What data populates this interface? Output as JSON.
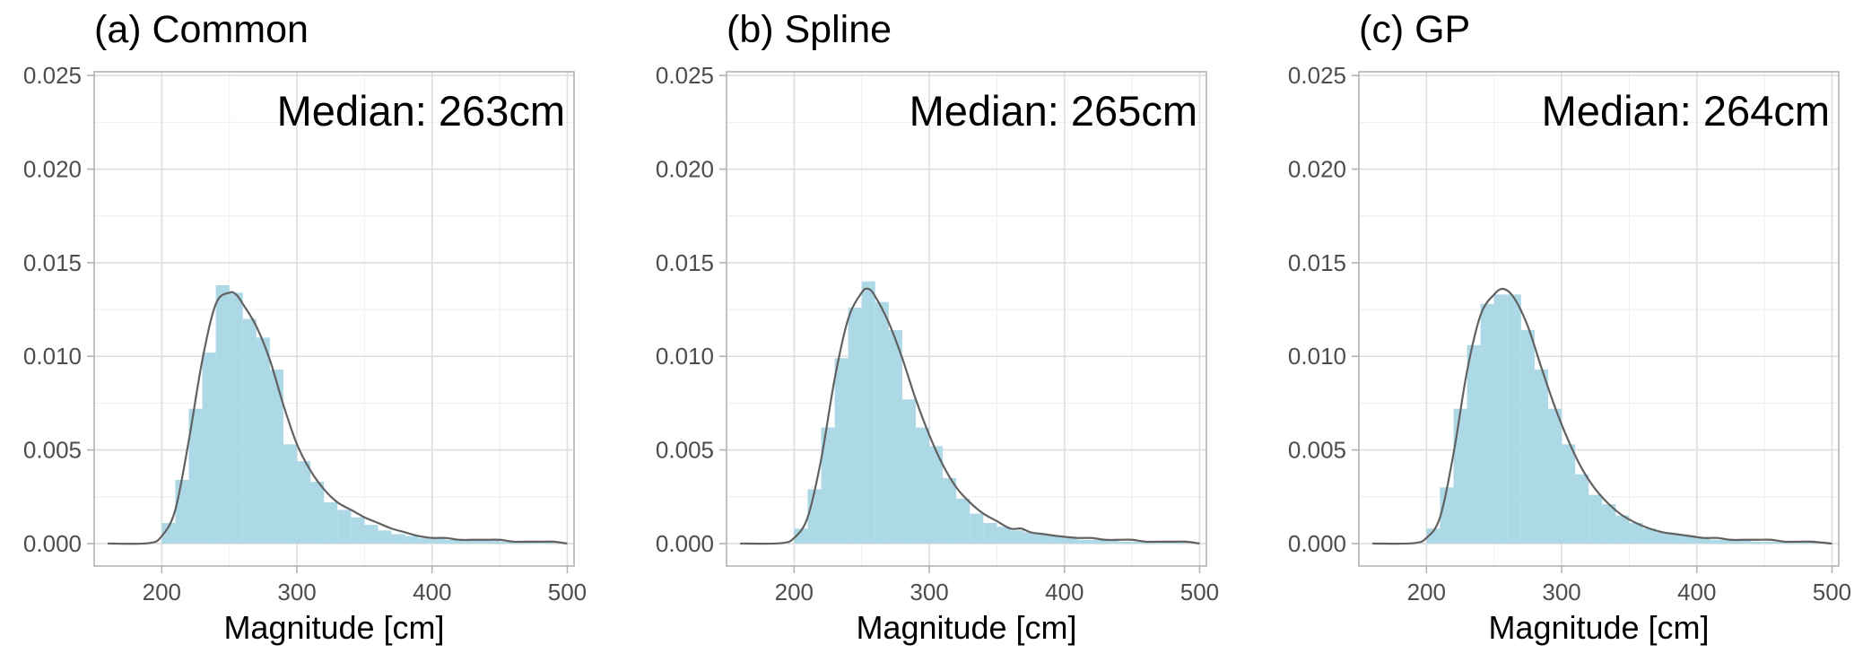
{
  "chart_data": [
    {
      "type": "histogram",
      "title": "(a) Common",
      "annotation": "Median: 263cm",
      "xlabel": "Magnitude [cm]",
      "ylabel": "",
      "xlim": [
        150,
        505
      ],
      "ylim": [
        -0.0012,
        0.0252
      ],
      "x_ticks": [
        200,
        300,
        400,
        500
      ],
      "y_ticks": [
        0.0,
        0.005,
        0.01,
        0.015,
        0.02,
        0.025
      ],
      "x_tick_labels": [
        "200",
        "300",
        "400",
        "500"
      ],
      "y_tick_labels": [
        "0.000",
        "0.005",
        "0.010",
        "0.015",
        "0.020",
        "0.025"
      ],
      "grid": true,
      "bin_width": 10,
      "bins": [
        {
          "x": 205,
          "y": 0.0011
        },
        {
          "x": 215,
          "y": 0.0034
        },
        {
          "x": 225,
          "y": 0.0072
        },
        {
          "x": 235,
          "y": 0.0102
        },
        {
          "x": 245,
          "y": 0.0138
        },
        {
          "x": 255,
          "y": 0.0134
        },
        {
          "x": 265,
          "y": 0.012
        },
        {
          "x": 275,
          "y": 0.011
        },
        {
          "x": 285,
          "y": 0.0093
        },
        {
          "x": 295,
          "y": 0.0053
        },
        {
          "x": 305,
          "y": 0.0044
        },
        {
          "x": 315,
          "y": 0.0033
        },
        {
          "x": 325,
          "y": 0.0022
        },
        {
          "x": 335,
          "y": 0.0018
        },
        {
          "x": 345,
          "y": 0.0014
        },
        {
          "x": 355,
          "y": 0.001
        },
        {
          "x": 365,
          "y": 0.0007
        },
        {
          "x": 375,
          "y": 0.0005
        },
        {
          "x": 385,
          "y": 0.0004
        },
        {
          "x": 395,
          "y": 0.0003
        },
        {
          "x": 405,
          "y": 0.0003
        },
        {
          "x": 415,
          "y": 0.0002
        },
        {
          "x": 425,
          "y": 0.0002
        },
        {
          "x": 435,
          "y": 0.0002
        },
        {
          "x": 445,
          "y": 0.0002
        },
        {
          "x": 455,
          "y": 0.0001
        },
        {
          "x": 465,
          "y": 0.0001
        },
        {
          "x": 475,
          "y": 0.0001
        },
        {
          "x": 485,
          "y": 0.0001
        }
      ],
      "density": [
        [
          160,
          0.0
        ],
        [
          190,
          2e-05
        ],
        [
          200,
          0.0004
        ],
        [
          210,
          0.0018
        ],
        [
          220,
          0.0055
        ],
        [
          230,
          0.0098
        ],
        [
          240,
          0.0128
        ],
        [
          250,
          0.0134
        ],
        [
          255,
          0.0133
        ],
        [
          260,
          0.0128
        ],
        [
          270,
          0.0116
        ],
        [
          280,
          0.0098
        ],
        [
          290,
          0.0074
        ],
        [
          300,
          0.0053
        ],
        [
          310,
          0.0039
        ],
        [
          320,
          0.0029
        ],
        [
          330,
          0.0022
        ],
        [
          340,
          0.0018
        ],
        [
          350,
          0.0014
        ],
        [
          360,
          0.0011
        ],
        [
          370,
          0.0008
        ],
        [
          380,
          0.0006
        ],
        [
          390,
          0.0004
        ],
        [
          400,
          0.0003
        ],
        [
          410,
          0.0003
        ],
        [
          420,
          0.0002
        ],
        [
          430,
          0.0002
        ],
        [
          440,
          0.0002
        ],
        [
          450,
          0.0002
        ],
        [
          460,
          0.0001
        ],
        [
          470,
          0.0001
        ],
        [
          480,
          0.0001
        ],
        [
          490,
          0.0001
        ],
        [
          500,
          0.0
        ]
      ]
    },
    {
      "type": "histogram",
      "title": "(b) Spline",
      "annotation": "Median: 265cm",
      "xlabel": "Magnitude [cm]",
      "ylabel": "",
      "xlim": [
        150,
        505
      ],
      "ylim": [
        -0.0012,
        0.0252
      ],
      "x_ticks": [
        200,
        300,
        400,
        500
      ],
      "y_ticks": [
        0.0,
        0.005,
        0.01,
        0.015,
        0.02,
        0.025
      ],
      "x_tick_labels": [
        "200",
        "300",
        "400",
        "500"
      ],
      "y_tick_labels": [
        "0.000",
        "0.005",
        "0.010",
        "0.015",
        "0.020",
        "0.025"
      ],
      "grid": true,
      "bin_width": 10,
      "bins": [
        {
          "x": 205,
          "y": 0.0008
        },
        {
          "x": 215,
          "y": 0.0029
        },
        {
          "x": 225,
          "y": 0.0062
        },
        {
          "x": 235,
          "y": 0.0099
        },
        {
          "x": 245,
          "y": 0.0126
        },
        {
          "x": 255,
          "y": 0.014
        },
        {
          "x": 265,
          "y": 0.0129
        },
        {
          "x": 275,
          "y": 0.0114
        },
        {
          "x": 285,
          "y": 0.0077
        },
        {
          "x": 295,
          "y": 0.0062
        },
        {
          "x": 305,
          "y": 0.0052
        },
        {
          "x": 315,
          "y": 0.0035
        },
        {
          "x": 325,
          "y": 0.0024
        },
        {
          "x": 335,
          "y": 0.0016
        },
        {
          "x": 345,
          "y": 0.0011
        },
        {
          "x": 355,
          "y": 0.0009
        },
        {
          "x": 365,
          "y": 0.0007
        },
        {
          "x": 375,
          "y": 0.0006
        },
        {
          "x": 385,
          "y": 0.0005
        },
        {
          "x": 395,
          "y": 0.0004
        },
        {
          "x": 405,
          "y": 0.0003
        },
        {
          "x": 415,
          "y": 0.0002
        },
        {
          "x": 425,
          "y": 0.0002
        },
        {
          "x": 435,
          "y": 0.0002
        },
        {
          "x": 445,
          "y": 0.0001
        },
        {
          "x": 455,
          "y": 0.0001
        },
        {
          "x": 465,
          "y": 0.0001
        },
        {
          "x": 475,
          "y": 0.0001
        },
        {
          "x": 485,
          "y": 0.0001
        }
      ],
      "density": [
        [
          160,
          0.0
        ],
        [
          190,
          2e-05
        ],
        [
          200,
          0.0003
        ],
        [
          210,
          0.0014
        ],
        [
          220,
          0.0045
        ],
        [
          230,
          0.0088
        ],
        [
          240,
          0.012
        ],
        [
          250,
          0.0134
        ],
        [
          255,
          0.0136
        ],
        [
          260,
          0.0132
        ],
        [
          270,
          0.0118
        ],
        [
          280,
          0.0099
        ],
        [
          290,
          0.0077
        ],
        [
          300,
          0.0058
        ],
        [
          310,
          0.0042
        ],
        [
          320,
          0.003
        ],
        [
          330,
          0.0022
        ],
        [
          340,
          0.0016
        ],
        [
          350,
          0.0012
        ],
        [
          360,
          0.0008
        ],
        [
          368,
          0.0008
        ],
        [
          375,
          0.0006
        ],
        [
          385,
          0.0005
        ],
        [
          395,
          0.0004
        ],
        [
          410,
          0.0003
        ],
        [
          420,
          0.0003
        ],
        [
          430,
          0.0002
        ],
        [
          440,
          0.0002
        ],
        [
          450,
          0.0002
        ],
        [
          460,
          0.0001
        ],
        [
          470,
          0.0001
        ],
        [
          480,
          0.0001
        ],
        [
          490,
          0.0001
        ],
        [
          500,
          0.0
        ]
      ]
    },
    {
      "type": "histogram",
      "title": "(c) GP",
      "annotation": "Median: 264cm",
      "xlabel": "Magnitude [cm]",
      "ylabel": "",
      "xlim": [
        150,
        505
      ],
      "ylim": [
        -0.0012,
        0.0252
      ],
      "x_ticks": [
        200,
        300,
        400,
        500
      ],
      "y_ticks": [
        0.0,
        0.005,
        0.01,
        0.015,
        0.02,
        0.025
      ],
      "x_tick_labels": [
        "200",
        "300",
        "400",
        "500"
      ],
      "y_tick_labels": [
        "0.000",
        "0.005",
        "0.010",
        "0.015",
        "0.020",
        "0.025"
      ],
      "grid": true,
      "bin_width": 10,
      "bins": [
        {
          "x": 205,
          "y": 0.0008
        },
        {
          "x": 215,
          "y": 0.003
        },
        {
          "x": 225,
          "y": 0.0072
        },
        {
          "x": 235,
          "y": 0.0106
        },
        {
          "x": 245,
          "y": 0.0128
        },
        {
          "x": 255,
          "y": 0.0133
        },
        {
          "x": 265,
          "y": 0.0133
        },
        {
          "x": 275,
          "y": 0.0114
        },
        {
          "x": 285,
          "y": 0.0093
        },
        {
          "x": 295,
          "y": 0.0072
        },
        {
          "x": 305,
          "y": 0.0053
        },
        {
          "x": 315,
          "y": 0.0037
        },
        {
          "x": 325,
          "y": 0.0026
        },
        {
          "x": 335,
          "y": 0.0021
        },
        {
          "x": 345,
          "y": 0.0015
        },
        {
          "x": 355,
          "y": 0.0011
        },
        {
          "x": 365,
          "y": 0.0008
        },
        {
          "x": 375,
          "y": 0.0006
        },
        {
          "x": 385,
          "y": 0.0005
        },
        {
          "x": 395,
          "y": 0.0004
        },
        {
          "x": 405,
          "y": 0.0003
        },
        {
          "x": 415,
          "y": 0.0002
        },
        {
          "x": 425,
          "y": 0.0002
        },
        {
          "x": 435,
          "y": 0.0002
        },
        {
          "x": 445,
          "y": 0.0001
        },
        {
          "x": 455,
          "y": 0.0001
        },
        {
          "x": 465,
          "y": 0.0001
        },
        {
          "x": 475,
          "y": 0.0001
        },
        {
          "x": 485,
          "y": 0.0001
        }
      ],
      "density": [
        [
          160,
          0.0
        ],
        [
          190,
          2e-05
        ],
        [
          200,
          0.0003
        ],
        [
          210,
          0.0014
        ],
        [
          220,
          0.0048
        ],
        [
          230,
          0.0092
        ],
        [
          240,
          0.0122
        ],
        [
          250,
          0.0133
        ],
        [
          257,
          0.0136
        ],
        [
          265,
          0.0131
        ],
        [
          275,
          0.0116
        ],
        [
          285,
          0.0094
        ],
        [
          295,
          0.0073
        ],
        [
          305,
          0.0055
        ],
        [
          315,
          0.004
        ],
        [
          325,
          0.0029
        ],
        [
          335,
          0.0021
        ],
        [
          345,
          0.0015
        ],
        [
          355,
          0.0011
        ],
        [
          365,
          0.0008
        ],
        [
          375,
          0.0006
        ],
        [
          385,
          0.0005
        ],
        [
          395,
          0.0004
        ],
        [
          405,
          0.0003
        ],
        [
          415,
          0.0003
        ],
        [
          425,
          0.0002
        ],
        [
          435,
          0.0002
        ],
        [
          445,
          0.0002
        ],
        [
          455,
          0.0002
        ],
        [
          465,
          0.0001
        ],
        [
          475,
          0.0001
        ],
        [
          485,
          0.0001
        ],
        [
          500,
          0.0
        ]
      ]
    }
  ]
}
